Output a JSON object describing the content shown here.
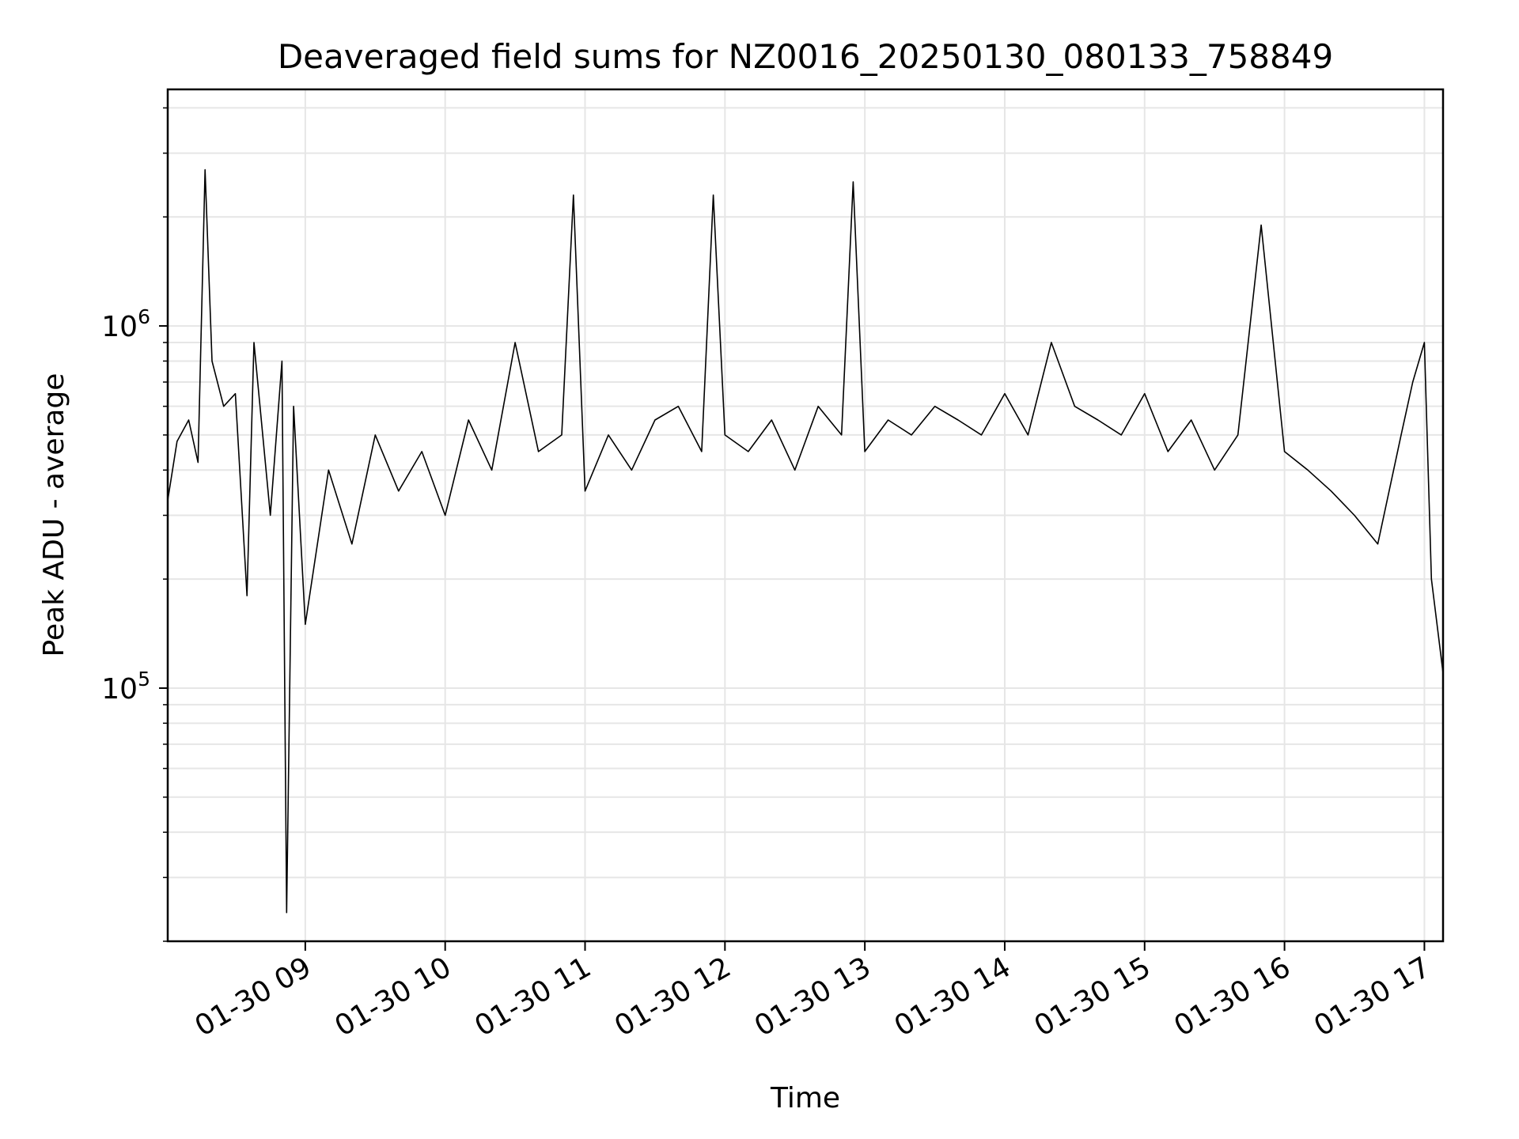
{
  "chart_data": {
    "type": "line",
    "title": "Deaveraged field sums for NZ0016_20250130_080133_758849",
    "xlabel": "Time",
    "ylabel": "Peak ADU - average",
    "yscale": "log",
    "xlim": [
      "2025-01-30 08:01",
      "2025-01-30 17:08"
    ],
    "ylim": [
      20000,
      4500000
    ],
    "x_ticks": [
      {
        "value": "2025-01-30 09:00",
        "label": "01-30 09"
      },
      {
        "value": "2025-01-30 10:00",
        "label": "01-30 10"
      },
      {
        "value": "2025-01-30 11:00",
        "label": "01-30 11"
      },
      {
        "value": "2025-01-30 12:00",
        "label": "01-30 12"
      },
      {
        "value": "2025-01-30 13:00",
        "label": "01-30 13"
      },
      {
        "value": "2025-01-30 14:00",
        "label": "01-30 14"
      },
      {
        "value": "2025-01-30 15:00",
        "label": "01-30 15"
      },
      {
        "value": "2025-01-30 16:00",
        "label": "01-30 16"
      },
      {
        "value": "2025-01-30 17:00",
        "label": "01-30 17"
      }
    ],
    "y_ticks": [
      {
        "value": 100000,
        "base": "10",
        "exp": "5"
      },
      {
        "value": 1000000,
        "base": "10",
        "exp": "6"
      }
    ],
    "grid": true,
    "line_color": "#000000",
    "series": [
      {
        "x": [
          "2025-01-30 08:01",
          "2025-01-30 08:05",
          "2025-01-30 08:10",
          "2025-01-30 08:14",
          "2025-01-30 08:17",
          "2025-01-30 08:20",
          "2025-01-30 08:25",
          "2025-01-30 08:30",
          "2025-01-30 08:35",
          "2025-01-30 08:38",
          "2025-01-30 08:45",
          "2025-01-30 08:50",
          "2025-01-30 08:52",
          "2025-01-30 08:55",
          "2025-01-30 09:00",
          "2025-01-30 09:10",
          "2025-01-30 09:20",
          "2025-01-30 09:30",
          "2025-01-30 09:40",
          "2025-01-30 09:50",
          "2025-01-30 10:00",
          "2025-01-30 10:10",
          "2025-01-30 10:20",
          "2025-01-30 10:30",
          "2025-01-30 10:40",
          "2025-01-30 10:50",
          "2025-01-30 10:55",
          "2025-01-30 11:00",
          "2025-01-30 11:10",
          "2025-01-30 11:20",
          "2025-01-30 11:30",
          "2025-01-30 11:40",
          "2025-01-30 11:50",
          "2025-01-30 11:55",
          "2025-01-30 12:00",
          "2025-01-30 12:10",
          "2025-01-30 12:20",
          "2025-01-30 12:30",
          "2025-01-30 12:40",
          "2025-01-30 12:50",
          "2025-01-30 12:55",
          "2025-01-30 13:00",
          "2025-01-30 13:10",
          "2025-01-30 13:20",
          "2025-01-30 13:30",
          "2025-01-30 13:40",
          "2025-01-30 13:50",
          "2025-01-30 14:00",
          "2025-01-30 14:10",
          "2025-01-30 14:20",
          "2025-01-30 14:30",
          "2025-01-30 14:40",
          "2025-01-30 14:50",
          "2025-01-30 15:00",
          "2025-01-30 15:10",
          "2025-01-30 15:20",
          "2025-01-30 15:30",
          "2025-01-30 15:40",
          "2025-01-30 15:50",
          "2025-01-30 16:00",
          "2025-01-30 16:10",
          "2025-01-30 16:20",
          "2025-01-30 16:30",
          "2025-01-30 16:40",
          "2025-01-30 16:50",
          "2025-01-30 16:55",
          "2025-01-30 17:00",
          "2025-01-30 17:03",
          "2025-01-30 17:06",
          "2025-01-30 17:08"
        ],
        "y": [
          330000,
          480000,
          550000,
          420000,
          2700000,
          800000,
          600000,
          650000,
          180000,
          900000,
          300000,
          800000,
          24000,
          600000,
          150000,
          400000,
          250000,
          500000,
          350000,
          450000,
          300000,
          550000,
          400000,
          900000,
          450000,
          500000,
          2300000,
          350000,
          500000,
          400000,
          550000,
          600000,
          450000,
          2300000,
          500000,
          450000,
          550000,
          400000,
          600000,
          500000,
          2500000,
          450000,
          550000,
          500000,
          600000,
          550000,
          500000,
          650000,
          500000,
          900000,
          600000,
          550000,
          500000,
          650000,
          450000,
          550000,
          400000,
          500000,
          1900000,
          450000,
          400000,
          350000,
          300000,
          250000,
          500000,
          700000,
          900000,
          200000,
          140000,
          110000
        ]
      }
    ]
  }
}
